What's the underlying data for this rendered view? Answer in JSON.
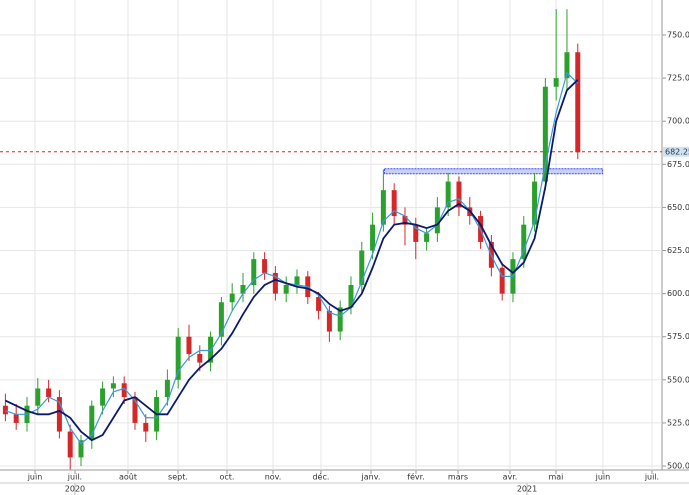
{
  "chart_data": {
    "type": "candlestick",
    "x": [
      0,
      1,
      2,
      3,
      4,
      5,
      6,
      7,
      8,
      9,
      10,
      11,
      12,
      13,
      14,
      15,
      16,
      17,
      18,
      19,
      20,
      21,
      22,
      23,
      24,
      25,
      26,
      27,
      28,
      29,
      30,
      31,
      32,
      33,
      34,
      35,
      36,
      37,
      38,
      39,
      40,
      41,
      42,
      43,
      44,
      45,
      46,
      47,
      48,
      49,
      50,
      51,
      52,
      53
    ],
    "open": [
      535,
      530,
      525,
      535,
      545,
      540,
      520,
      505,
      515,
      535,
      545,
      548,
      540,
      525,
      520,
      540,
      550,
      575,
      565,
      560,
      575,
      595,
      600,
      605,
      620,
      612,
      600,
      605,
      610,
      598,
      590,
      578,
      592,
      605,
      625,
      640,
      660,
      645,
      640,
      630,
      635,
      650,
      665,
      650,
      645,
      630,
      615,
      600,
      620,
      640,
      665,
      720,
      725,
      740
    ],
    "high": [
      542,
      536,
      540,
      551,
      550,
      544,
      524,
      518,
      538,
      549,
      552,
      552,
      543,
      530,
      544,
      556,
      580,
      582,
      570,
      578,
      598,
      606,
      612,
      624,
      624,
      616,
      610,
      614,
      613,
      601,
      593,
      596,
      610,
      630,
      647,
      672,
      664,
      650,
      644,
      638,
      656,
      670,
      668,
      656,
      648,
      634,
      618,
      624,
      645,
      670,
      725,
      765,
      765,
      745
    ],
    "low": [
      526,
      521,
      520,
      530,
      537,
      516,
      498,
      500,
      510,
      530,
      540,
      536,
      521,
      514,
      515,
      535,
      545,
      561,
      555,
      555,
      570,
      590,
      595,
      600,
      608,
      596,
      595,
      600,
      594,
      585,
      572,
      573,
      588,
      600,
      620,
      636,
      640,
      628,
      620,
      625,
      630,
      645,
      645,
      640,
      626,
      610,
      596,
      595,
      615,
      636,
      660,
      712,
      718,
      678
    ],
    "close": [
      530,
      525,
      535,
      545,
      540,
      520,
      505,
      515,
      535,
      545,
      548,
      540,
      525,
      520,
      540,
      550,
      575,
      565,
      560,
      575,
      595,
      600,
      605,
      620,
      612,
      600,
      605,
      610,
      598,
      590,
      578,
      592,
      605,
      625,
      640,
      660,
      645,
      640,
      630,
      635,
      650,
      665,
      650,
      645,
      630,
      615,
      600,
      620,
      640,
      665,
      720,
      725,
      740,
      682
    ],
    "up_color": "#2ca02c",
    "down_color": "#d62728",
    "series": [
      {
        "color": "#3a9ad9",
        "values": [
          532,
          530,
          530,
          533,
          540,
          537,
          522,
          513,
          518,
          532,
          543,
          545,
          538,
          528,
          528,
          537,
          555,
          563,
          567,
          567,
          577,
          590,
          600,
          608,
          612,
          610,
          606,
          605,
          604,
          599,
          589,
          587,
          592,
          607,
          623,
          642,
          648,
          645,
          638,
          635,
          640,
          653,
          655,
          648,
          637,
          622,
          610,
          610,
          625,
          642,
          675,
          705,
          728,
          722
        ]
      },
      {
        "color": "#0b1a6b",
        "values": [
          538,
          535,
          532,
          530,
          530,
          532,
          528,
          520,
          515,
          518,
          528,
          538,
          540,
          535,
          530,
          530,
          540,
          550,
          557,
          562,
          568,
          577,
          588,
          598,
          605,
          608,
          606,
          604,
          603,
          600,
          594,
          590,
          592,
          600,
          615,
          632,
          640,
          641,
          640,
          638,
          640,
          648,
          652,
          648,
          640,
          628,
          617,
          612,
          618,
          632,
          662,
          700,
          718,
          724
        ]
      }
    ],
    "last_price": 682.25,
    "resistance_level": 671,
    "resistance_x": [
      35.1,
      55.3
    ],
    "xlim": [
      -0.5,
      60.8
    ],
    "xticks": [
      {
        "value": 2.74,
        "label": "juin"
      },
      {
        "value": 6.44,
        "label": "juil."
      },
      {
        "value": 11.35,
        "label": "août"
      },
      {
        "value": 15.98,
        "label": "sept."
      },
      {
        "value": 20.52,
        "label": "oct."
      },
      {
        "value": 24.78,
        "label": "nov."
      },
      {
        "value": 29.22,
        "label": "déc."
      },
      {
        "value": 33.85,
        "label": "janv."
      },
      {
        "value": 38.02,
        "label": "févr."
      },
      {
        "value": 41.91,
        "label": "mars"
      },
      {
        "value": 46.72,
        "label": "avr."
      },
      {
        "value": 50.98,
        "label": "mai"
      },
      {
        "value": 55.33,
        "label": "juin"
      },
      {
        "value": 59.87,
        "label": "juil."
      }
    ],
    "year_ticks": [
      {
        "value": 6.44,
        "label": "2020"
      },
      {
        "value": 48.3,
        "label": "2021"
      }
    ],
    "ylim": [
      497.7,
      770.3
    ],
    "yticks": [
      {
        "value": 500,
        "label": "500.00"
      },
      {
        "value": 525,
        "label": "525.00"
      },
      {
        "value": 550,
        "label": "550.00"
      },
      {
        "value": 575,
        "label": "575.00"
      },
      {
        "value": 600,
        "label": "600.00"
      },
      {
        "value": 625,
        "label": "625.00"
      },
      {
        "value": 650,
        "label": "650.00"
      },
      {
        "value": 675,
        "label": "675.00"
      },
      {
        "value": 700,
        "label": "700.00"
      },
      {
        "value": 725,
        "label": "725.00"
      },
      {
        "value": 750,
        "label": "750.00"
      }
    ],
    "grid": true
  }
}
